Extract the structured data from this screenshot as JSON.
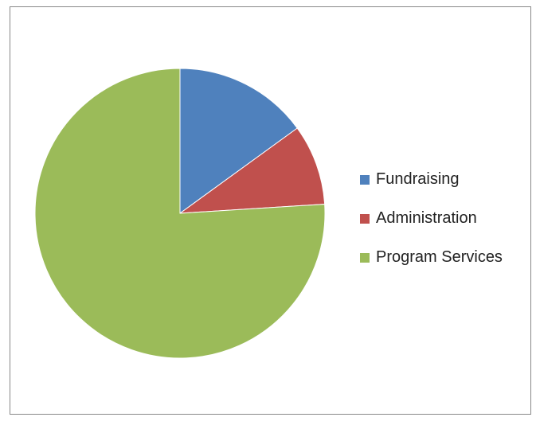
{
  "chart_data": {
    "type": "pie",
    "slices": [
      {
        "label": "Fundraising",
        "value": 15,
        "color": "#4f81bd"
      },
      {
        "label": "Administration",
        "value": 9,
        "color": "#c0504d"
      },
      {
        "label": "Program Services",
        "value": 76,
        "color": "#9bbb59"
      }
    ],
    "start_angle_deg": 0,
    "direction": "clockwise",
    "legend_position": "right"
  }
}
